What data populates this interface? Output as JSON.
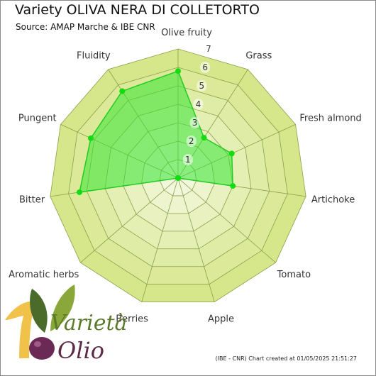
{
  "header": {
    "title": "Variety OLIVA NERA DI COLLETORTO",
    "subtitle": "Source: AMAP Marche & IBE CNR"
  },
  "footer": {
    "credit": "(IBE - CNR) Chart created at 01/05/2025 21:51:27"
  },
  "logo": {
    "word_top": "Varietà",
    "word_bottom": "Olio",
    "colors": {
      "gold": "#f0c24a",
      "leaf_dark": "#4a6b2a",
      "leaf_light": "#8aa83a",
      "olive_purple": "#6b2a55",
      "text_green": "#5a7a2a"
    }
  },
  "chart_data": {
    "type": "radar",
    "axes": [
      "Olive fruity",
      "Grass",
      "Fresh almond",
      "Artichoke",
      "Tomato",
      "Apple",
      "Berries",
      "Aromatic herbs",
      "Bitter",
      "Pungent",
      "Fluidity"
    ],
    "rmax": 7,
    "ticks": [
      1,
      2,
      3,
      4,
      5,
      6,
      7
    ],
    "series": [
      {
        "values": [
          5.8,
          2.6,
          3.2,
          3.0,
          0,
          0,
          0,
          0,
          5.4,
          5.2,
          5.6
        ]
      }
    ],
    "colors": {
      "series_fill": "#33e633",
      "series_line": "#22cc22",
      "marker": "#11dd11",
      "band_outer": "#d6e68a",
      "band_inner": "#f2f7dc",
      "grid_line": "#8aa04a"
    }
  }
}
